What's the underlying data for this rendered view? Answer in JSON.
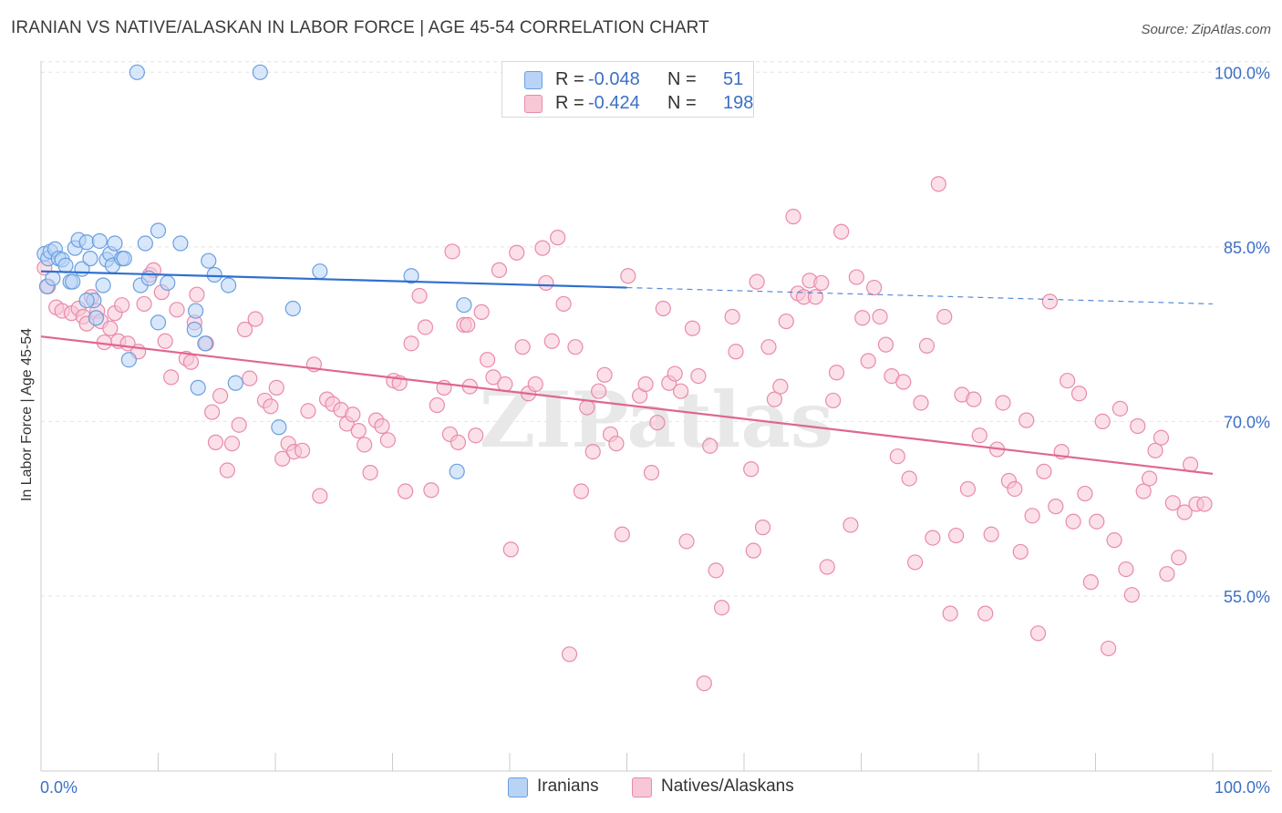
{
  "header": {
    "title": "IRANIAN VS NATIVE/ALASKAN IN LABOR FORCE | AGE 45-54 CORRELATION CHART",
    "source": "Source: ZipAtlas.com"
  },
  "legend": {
    "rows": [
      {
        "r_label": "R =",
        "r_value": "-0.048",
        "n_label": "N =",
        "n_value": "51"
      },
      {
        "r_label": "R =",
        "r_value": "-0.424",
        "n_label": "N =",
        "n_value": "198"
      }
    ],
    "bottom": [
      "Iranians",
      "Natives/Alaskans"
    ]
  },
  "colors": {
    "iranian_fill": "#b8d3f5",
    "iranian_stroke": "#6b9fe0",
    "iranian_line": "#2f6fcf",
    "native_fill": "#f7c7d6",
    "native_stroke": "#e98aab",
    "native_line": "#e0668f",
    "axis_label": "#3d6fc7",
    "grid": "#e4e4e4"
  },
  "chart_data": {
    "type": "scatter",
    "title": "IRANIAN VS NATIVE/ALASKAN IN LABOR FORCE | AGE 45-54 CORRELATION CHART",
    "xlabel": "",
    "ylabel": "In Labor Force | Age 45-54",
    "xlim": [
      0,
      100
    ],
    "ylim": [
      40,
      101
    ],
    "x_tick_labels": [
      "0.0%",
      "100.0%"
    ],
    "y_ticks": [
      55,
      70,
      85,
      100
    ],
    "y_tick_labels": [
      "55.0%",
      "70.0%",
      "85.0%",
      "100.0%"
    ],
    "watermark": "ZIPatlas",
    "series": [
      {
        "name": "Iranians",
        "r": -0.048,
        "n": 51,
        "trend": {
          "x": [
            0,
            50
          ],
          "y": [
            82.9,
            81.5
          ]
        },
        "trend_dashed": {
          "x": [
            50,
            100
          ],
          "y": [
            81.5,
            80.1
          ]
        },
        "points": [
          [
            0.3,
            84.4
          ],
          [
            0.5,
            81.6
          ],
          [
            0.6,
            84.0
          ],
          [
            0.8,
            84.6
          ],
          [
            1.0,
            82.3
          ],
          [
            1.2,
            84.8
          ],
          [
            1.5,
            84.0
          ],
          [
            1.8,
            83.9
          ],
          [
            2.1,
            83.4
          ],
          [
            2.5,
            82.0
          ],
          [
            2.9,
            84.9
          ],
          [
            3.2,
            85.6
          ],
          [
            3.5,
            83.1
          ],
          [
            3.9,
            85.4
          ],
          [
            4.2,
            84.0
          ],
          [
            4.5,
            80.4
          ],
          [
            4.7,
            78.9
          ],
          [
            5.0,
            85.5
          ],
          [
            5.3,
            81.7
          ],
          [
            5.6,
            83.9
          ],
          [
            5.9,
            84.4
          ],
          [
            6.1,
            83.4
          ],
          [
            6.3,
            85.3
          ],
          [
            6.9,
            84.0
          ],
          [
            7.1,
            84.0
          ],
          [
            7.5,
            75.3
          ],
          [
            8.2,
            100.0
          ],
          [
            8.5,
            81.7
          ],
          [
            8.9,
            85.3
          ],
          [
            9.2,
            82.3
          ],
          [
            10.0,
            86.4
          ],
          [
            10.0,
            78.5
          ],
          [
            10.8,
            81.9
          ],
          [
            11.9,
            85.3
          ],
          [
            13.1,
            77.9
          ],
          [
            13.2,
            79.5
          ],
          [
            13.4,
            72.9
          ],
          [
            14.0,
            76.7
          ],
          [
            14.3,
            83.8
          ],
          [
            14.8,
            82.6
          ],
          [
            16.0,
            81.7
          ],
          [
            16.6,
            73.3
          ],
          [
            18.7,
            100.0
          ],
          [
            20.3,
            69.5
          ],
          [
            21.5,
            79.7
          ],
          [
            23.8,
            82.9
          ],
          [
            31.6,
            82.5
          ],
          [
            35.5,
            65.7
          ],
          [
            36.1,
            80.0
          ],
          [
            2.7,
            82.0
          ],
          [
            3.9,
            80.4
          ]
        ]
      },
      {
        "name": "Natives/Alaskans",
        "r": -0.424,
        "n": 198,
        "trend": {
          "x": [
            0,
            100
          ],
          "y": [
            77.3,
            65.5
          ]
        },
        "points": [
          [
            0.3,
            83.2
          ],
          [
            0.6,
            81.6
          ],
          [
            1.3,
            79.8
          ],
          [
            1.8,
            79.5
          ],
          [
            2.6,
            79.3
          ],
          [
            3.2,
            79.7
          ],
          [
            3.6,
            79.0
          ],
          [
            3.9,
            78.4
          ],
          [
            4.3,
            80.7
          ],
          [
            4.8,
            79.5
          ],
          [
            5.1,
            78.6
          ],
          [
            5.4,
            76.8
          ],
          [
            5.9,
            78.0
          ],
          [
            6.3,
            79.3
          ],
          [
            6.6,
            76.9
          ],
          [
            6.9,
            80.0
          ],
          [
            7.4,
            76.7
          ],
          [
            8.3,
            76.0
          ],
          [
            8.8,
            80.1
          ],
          [
            9.3,
            82.6
          ],
          [
            9.6,
            83.0
          ],
          [
            10.3,
            81.1
          ],
          [
            10.6,
            76.9
          ],
          [
            11.1,
            73.8
          ],
          [
            11.6,
            79.6
          ],
          [
            12.4,
            75.4
          ],
          [
            12.8,
            75.1
          ],
          [
            13.1,
            78.5
          ],
          [
            13.3,
            80.9
          ],
          [
            14.1,
            76.7
          ],
          [
            14.6,
            70.8
          ],
          [
            14.9,
            68.2
          ],
          [
            15.3,
            72.2
          ],
          [
            15.9,
            65.8
          ],
          [
            16.3,
            68.1
          ],
          [
            16.9,
            69.7
          ],
          [
            17.4,
            77.9
          ],
          [
            17.8,
            73.7
          ],
          [
            18.3,
            78.8
          ],
          [
            19.1,
            71.8
          ],
          [
            19.6,
            71.3
          ],
          [
            20.1,
            72.9
          ],
          [
            20.6,
            66.8
          ],
          [
            21.1,
            68.1
          ],
          [
            21.6,
            67.4
          ],
          [
            22.3,
            67.5
          ],
          [
            22.8,
            70.9
          ],
          [
            23.3,
            74.9
          ],
          [
            23.8,
            63.6
          ],
          [
            24.4,
            71.9
          ],
          [
            24.9,
            71.5
          ],
          [
            25.6,
            71.0
          ],
          [
            26.1,
            69.8
          ],
          [
            26.6,
            70.6
          ],
          [
            27.1,
            69.2
          ],
          [
            27.6,
            68.0
          ],
          [
            28.1,
            65.6
          ],
          [
            28.6,
            70.1
          ],
          [
            29.1,
            69.6
          ],
          [
            29.6,
            68.4
          ],
          [
            30.1,
            73.5
          ],
          [
            30.6,
            73.3
          ],
          [
            31.1,
            64.0
          ],
          [
            31.6,
            76.7
          ],
          [
            32.3,
            80.8
          ],
          [
            32.8,
            78.1
          ],
          [
            33.3,
            64.1
          ],
          [
            33.8,
            71.4
          ],
          [
            34.4,
            72.9
          ],
          [
            34.9,
            68.9
          ],
          [
            35.1,
            84.6
          ],
          [
            35.6,
            68.2
          ],
          [
            36.1,
            78.3
          ],
          [
            36.6,
            73.0
          ],
          [
            37.1,
            68.8
          ],
          [
            37.6,
            79.4
          ],
          [
            38.1,
            75.3
          ],
          [
            38.6,
            73.8
          ],
          [
            39.1,
            83.0
          ],
          [
            39.6,
            73.2
          ],
          [
            40.1,
            59.0
          ],
          [
            40.6,
            84.5
          ],
          [
            41.1,
            76.4
          ],
          [
            41.6,
            72.4
          ],
          [
            42.2,
            73.2
          ],
          [
            42.8,
            84.9
          ],
          [
            43.1,
            81.9
          ],
          [
            43.6,
            76.9
          ],
          [
            44.1,
            85.8
          ],
          [
            44.6,
            80.1
          ],
          [
            45.1,
            50.0
          ],
          [
            45.6,
            76.4
          ],
          [
            46.1,
            64.0
          ],
          [
            46.6,
            71.2
          ],
          [
            47.1,
            67.4
          ],
          [
            47.6,
            72.6
          ],
          [
            48.1,
            74.0
          ],
          [
            48.6,
            68.9
          ],
          [
            49.1,
            68.1
          ],
          [
            49.6,
            60.3
          ],
          [
            50.1,
            82.5
          ],
          [
            51.1,
            72.2
          ],
          [
            51.6,
            73.2
          ],
          [
            52.1,
            65.6
          ],
          [
            52.6,
            69.9
          ],
          [
            53.1,
            79.7
          ],
          [
            53.6,
            73.3
          ],
          [
            54.1,
            74.1
          ],
          [
            54.6,
            72.6
          ],
          [
            55.1,
            59.7
          ],
          [
            55.6,
            78.0
          ],
          [
            56.1,
            73.9
          ],
          [
            56.6,
            47.5
          ],
          [
            57.1,
            67.9
          ],
          [
            57.6,
            57.2
          ],
          [
            58.1,
            54.0
          ],
          [
            59.0,
            79.0
          ],
          [
            59.3,
            76.0
          ],
          [
            60.6,
            65.9
          ],
          [
            60.8,
            58.9
          ],
          [
            61.1,
            82.0
          ],
          [
            61.6,
            60.9
          ],
          [
            62.1,
            76.4
          ],
          [
            62.6,
            71.9
          ],
          [
            63.1,
            73.0
          ],
          [
            63.6,
            78.6
          ],
          [
            64.2,
            87.6
          ],
          [
            64.6,
            81.0
          ],
          [
            65.1,
            80.7
          ],
          [
            65.6,
            82.1
          ],
          [
            66.1,
            80.7
          ],
          [
            66.6,
            81.9
          ],
          [
            67.1,
            57.5
          ],
          [
            67.6,
            71.8
          ],
          [
            67.9,
            74.2
          ],
          [
            68.3,
            86.3
          ],
          [
            69.1,
            61.1
          ],
          [
            69.6,
            82.4
          ],
          [
            70.1,
            78.9
          ],
          [
            70.6,
            75.2
          ],
          [
            71.1,
            81.5
          ],
          [
            71.6,
            79.0
          ],
          [
            72.1,
            76.6
          ],
          [
            72.6,
            73.9
          ],
          [
            73.1,
            67.0
          ],
          [
            73.6,
            73.4
          ],
          [
            74.1,
            65.1
          ],
          [
            74.6,
            57.9
          ],
          [
            75.1,
            71.6
          ],
          [
            75.6,
            76.5
          ],
          [
            76.1,
            60.0
          ],
          [
            76.6,
            90.4
          ],
          [
            77.1,
            79.0
          ],
          [
            77.6,
            53.5
          ],
          [
            78.1,
            60.2
          ],
          [
            78.6,
            72.3
          ],
          [
            79.1,
            64.2
          ],
          [
            79.6,
            71.9
          ],
          [
            80.1,
            68.8
          ],
          [
            80.6,
            53.5
          ],
          [
            81.1,
            60.3
          ],
          [
            81.6,
            67.6
          ],
          [
            82.1,
            71.6
          ],
          [
            82.6,
            64.9
          ],
          [
            83.1,
            64.2
          ],
          [
            83.6,
            58.8
          ],
          [
            84.1,
            70.1
          ],
          [
            84.6,
            61.9
          ],
          [
            85.1,
            51.8
          ],
          [
            85.6,
            65.7
          ],
          [
            86.1,
            80.3
          ],
          [
            86.6,
            62.7
          ],
          [
            87.1,
            67.4
          ],
          [
            87.6,
            73.5
          ],
          [
            88.1,
            61.4
          ],
          [
            88.6,
            72.4
          ],
          [
            89.1,
            63.8
          ],
          [
            89.6,
            56.2
          ],
          [
            90.1,
            61.4
          ],
          [
            90.6,
            70.0
          ],
          [
            91.1,
            50.5
          ],
          [
            91.6,
            59.8
          ],
          [
            92.1,
            71.1
          ],
          [
            92.6,
            57.3
          ],
          [
            93.1,
            55.1
          ],
          [
            93.6,
            69.6
          ],
          [
            94.1,
            64.0
          ],
          [
            94.6,
            65.1
          ],
          [
            95.1,
            67.5
          ],
          [
            95.6,
            68.6
          ],
          [
            96.1,
            56.9
          ],
          [
            96.6,
            63.0
          ],
          [
            97.1,
            58.3
          ],
          [
            97.6,
            62.2
          ],
          [
            98.1,
            66.3
          ],
          [
            98.6,
            62.9
          ],
          [
            99.3,
            62.9
          ],
          [
            36.4,
            78.3
          ]
        ]
      }
    ]
  }
}
